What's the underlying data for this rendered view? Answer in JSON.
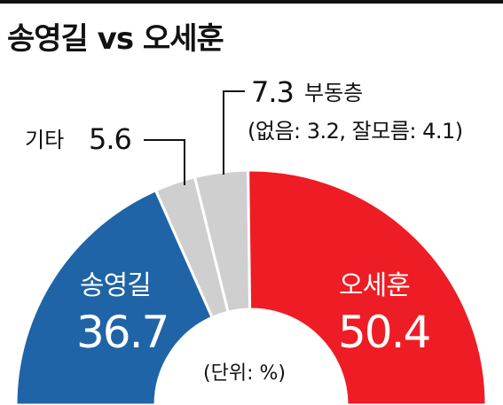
{
  "title": "송영길 vs 오세훈",
  "unit_note": "(단위: %)",
  "colors": {
    "song": "#1f64a6",
    "oh": "#ee1c24",
    "others": "#cfcfcf",
    "undecided": "#cfcfcf",
    "outline": "#ffffff"
  },
  "chart_data": {
    "type": "pie",
    "subtype": "half-donut",
    "title": "송영길 vs 오세훈",
    "unit": "%",
    "slices": [
      {
        "label": "송영길",
        "value": 36.7,
        "value_label": "36.7"
      },
      {
        "label": "기타",
        "value": 5.6,
        "value_label": "5.6"
      },
      {
        "label": "부동층",
        "value": 7.3,
        "value_label": "7.3"
      },
      {
        "label": "오세훈",
        "value": 50.4,
        "value_label": "50.4"
      }
    ],
    "undecided_breakdown": "(없음: 3.2, 잘모름: 4.1)"
  }
}
